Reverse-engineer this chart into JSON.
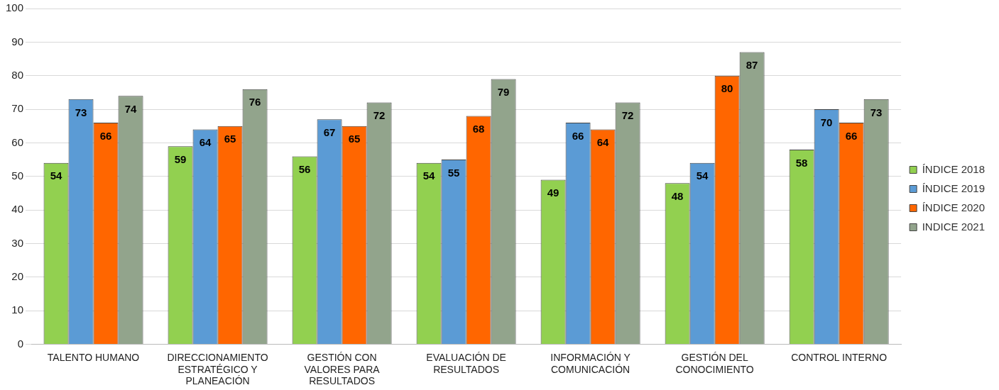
{
  "chart_data": {
    "type": "bar",
    "categories": [
      "TALENTO HUMANO",
      "DIRECCIONAMIENTO ESTRATÉGICO Y PLANEACIÓN",
      "GESTIÓN CON VALORES PARA RESULTADOS",
      "EVALUACIÓN DE RESULTADOS",
      "INFORMACIÓN Y COMUNICACIÓN",
      "GESTIÓN DEL CONOCIMIENTO",
      "CONTROL INTERNO"
    ],
    "series": [
      {
        "name": "ÍNDICE 2018",
        "color": "#92d050",
        "values": [
          54,
          59,
          56,
          54,
          49,
          48,
          58
        ]
      },
      {
        "name": "ÍNDICE 2019",
        "color": "#5b9bd5",
        "values": [
          73,
          64,
          67,
          55,
          66,
          54,
          70
        ]
      },
      {
        "name": "ÍNDICE 2020",
        "color": "#ff6600",
        "values": [
          66,
          65,
          65,
          68,
          64,
          80,
          66
        ]
      },
      {
        "name": "INDICE 2021",
        "color": "#92a48c",
        "values": [
          74,
          76,
          72,
          79,
          72,
          87,
          73
        ]
      }
    ],
    "ylim": [
      0,
      100
    ],
    "yticks": [
      0,
      10,
      20,
      30,
      40,
      50,
      60,
      70,
      80,
      90,
      100
    ],
    "grid": "y",
    "legend": "right",
    "data_labels": true
  }
}
